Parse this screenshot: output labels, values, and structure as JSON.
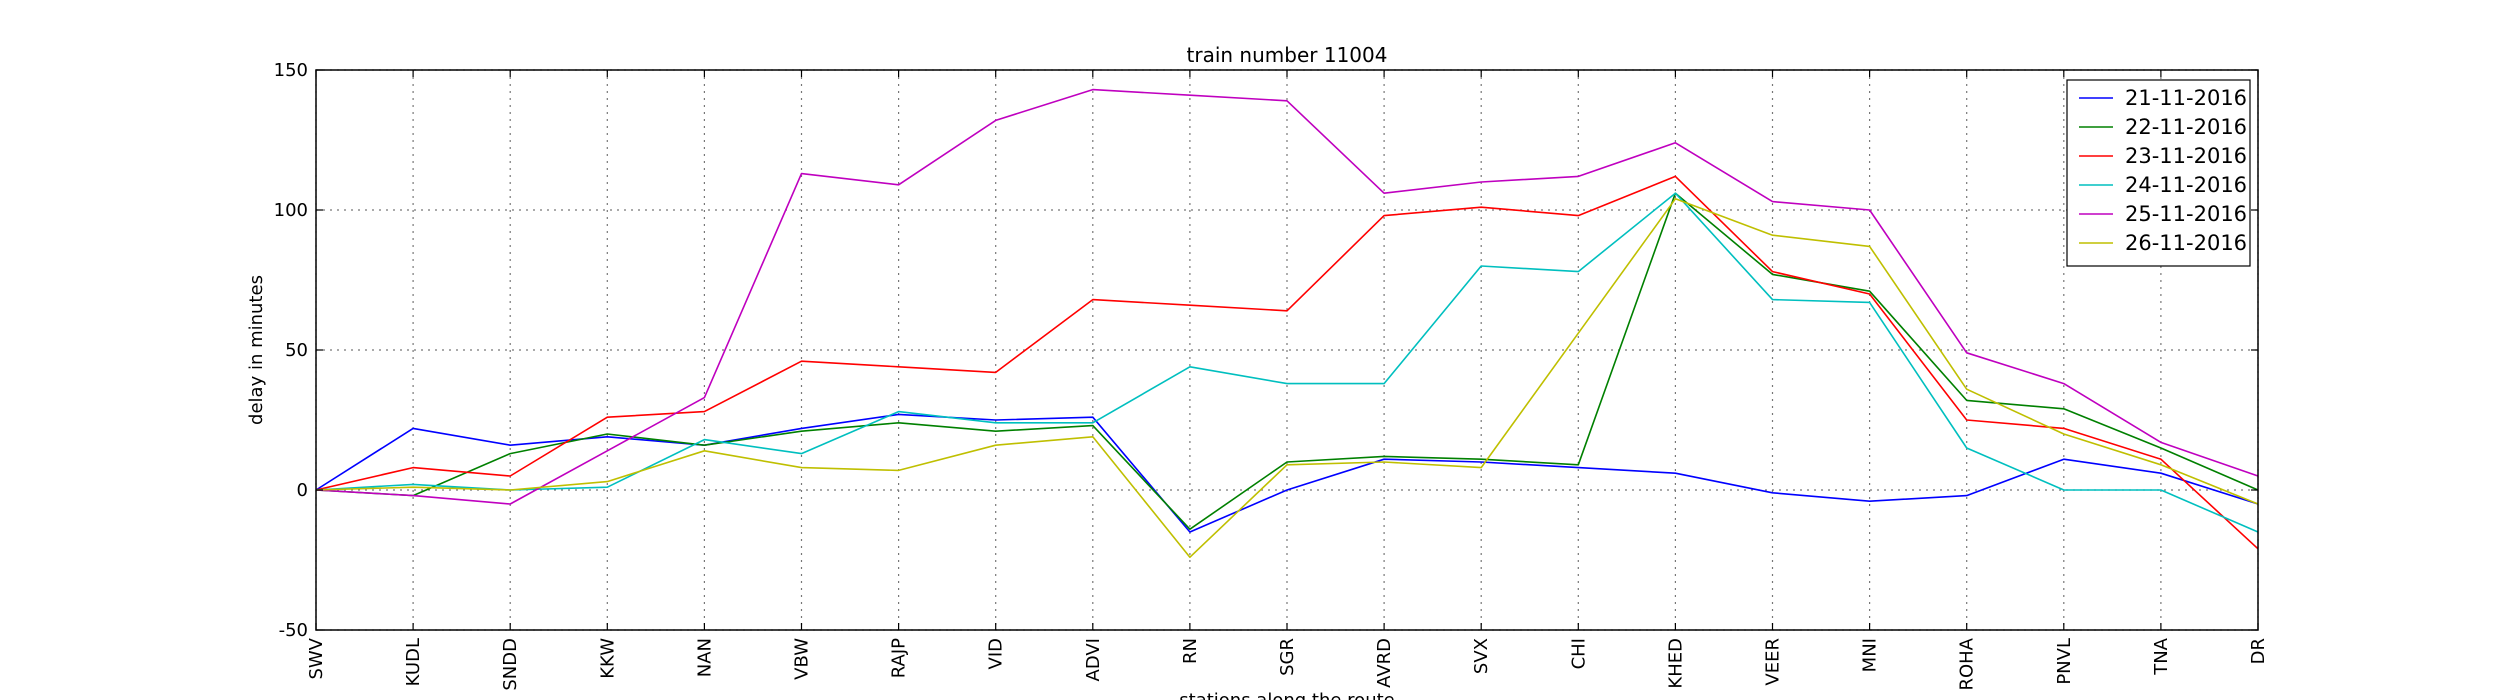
{
  "chart_data": {
    "type": "line",
    "title": "train number 11004",
    "xlabel": "stations along the route",
    "ylabel": "delay in minutes",
    "ylim": [
      -50,
      150
    ],
    "yticks": [
      -50,
      0,
      50,
      100,
      150
    ],
    "grid": true,
    "legend_position": "top-right",
    "categories": [
      "SWV",
      "KUDL",
      "SNDD",
      "KKW",
      "NAN",
      "VBW",
      "RAJP",
      "VID",
      "ADVI",
      "RN",
      "SGR",
      "AVRD",
      "SVX",
      "CHI",
      "KHED",
      "VEER",
      "MNI",
      "ROHA",
      "PNVL",
      "TNA",
      "DR"
    ],
    "series": [
      {
        "name": "21-11-2016",
        "color": "#0000ff",
        "values": [
          0,
          22,
          16,
          19,
          16,
          22,
          27,
          25,
          26,
          -15,
          0,
          11,
          10,
          8,
          6,
          -1,
          -4,
          -2,
          11,
          6,
          -5
        ]
      },
      {
        "name": "22-11-2016",
        "color": "#008000",
        "values": [
          0,
          -2,
          13,
          20,
          16,
          21,
          24,
          21,
          23,
          -14,
          10,
          12,
          11,
          9,
          106,
          77,
          71,
          32,
          29,
          15,
          0
        ]
      },
      {
        "name": "23-11-2016",
        "color": "#ff0000",
        "values": [
          0,
          8,
          5,
          26,
          28,
          46,
          44,
          42,
          68,
          66,
          64,
          98,
          101,
          98,
          112,
          78,
          70,
          25,
          22,
          11,
          -21
        ]
      },
      {
        "name": "24-11-2016",
        "color": "#00bfbf",
        "values": [
          0,
          2,
          0,
          1,
          18,
          13,
          28,
          24,
          24,
          44,
          38,
          38,
          80,
          78,
          106,
          68,
          67,
          15,
          0,
          0,
          -15
        ]
      },
      {
        "name": "25-11-2016",
        "color": "#bf00bf",
        "values": [
          0,
          -2,
          -5,
          14,
          33,
          113,
          109,
          132,
          143,
          141,
          139,
          106,
          110,
          112,
          124,
          103,
          100,
          49,
          38,
          17,
          5
        ]
      },
      {
        "name": "26-11-2016",
        "color": "#bfbf00",
        "values": [
          0,
          1,
          0,
          3,
          14,
          8,
          7,
          16,
          19,
          -24,
          9,
          10,
          8,
          56,
          104,
          91,
          87,
          36,
          20,
          9,
          -5
        ]
      }
    ]
  }
}
